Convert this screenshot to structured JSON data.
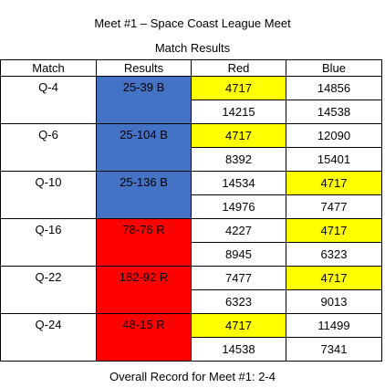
{
  "title": "Meet #1 – Space Coast League Meet",
  "subtitle": "Match Results",
  "headers": [
    "Match",
    "Results",
    "Red",
    "Blue"
  ],
  "colors": {
    "blue_result": "#4472c4",
    "red_result": "#ff0000",
    "highlight": "#ffff00"
  },
  "matches": [
    {
      "match": "Q-4",
      "result": "25-39 B",
      "result_color": "blue",
      "red": [
        "4717",
        "14215"
      ],
      "blue": [
        "14856",
        "14538"
      ],
      "highlight": {
        "side": "red",
        "index": 0
      }
    },
    {
      "match": "Q-6",
      "result": "25-104 B",
      "result_color": "blue",
      "red": [
        "4717",
        "8392"
      ],
      "blue": [
        "12090",
        "15401"
      ],
      "highlight": {
        "side": "red",
        "index": 0
      }
    },
    {
      "match": "Q-10",
      "result": "25-136 B",
      "result_color": "blue",
      "red": [
        "14534",
        "14976"
      ],
      "blue": [
        "4717",
        "7477"
      ],
      "highlight": {
        "side": "blue",
        "index": 0
      }
    },
    {
      "match": "Q-16",
      "result": "78-76 R",
      "result_color": "red",
      "red": [
        "4227",
        "8945"
      ],
      "blue": [
        "4717",
        "6323"
      ],
      "highlight": {
        "side": "blue",
        "index": 0
      }
    },
    {
      "match": "Q-22",
      "result": "182-92 R",
      "result_color": "red",
      "red": [
        "7477",
        "6323"
      ],
      "blue": [
        "4717",
        "9013"
      ],
      "highlight": {
        "side": "blue",
        "index": 0
      }
    },
    {
      "match": "Q-24",
      "result": "48-15 R",
      "result_color": "red",
      "red": [
        "4717",
        "14538"
      ],
      "blue": [
        "11499",
        "7341"
      ],
      "highlight": {
        "side": "red",
        "index": 0
      }
    }
  ],
  "footer": "Overall Record for Meet #1: 2-4"
}
